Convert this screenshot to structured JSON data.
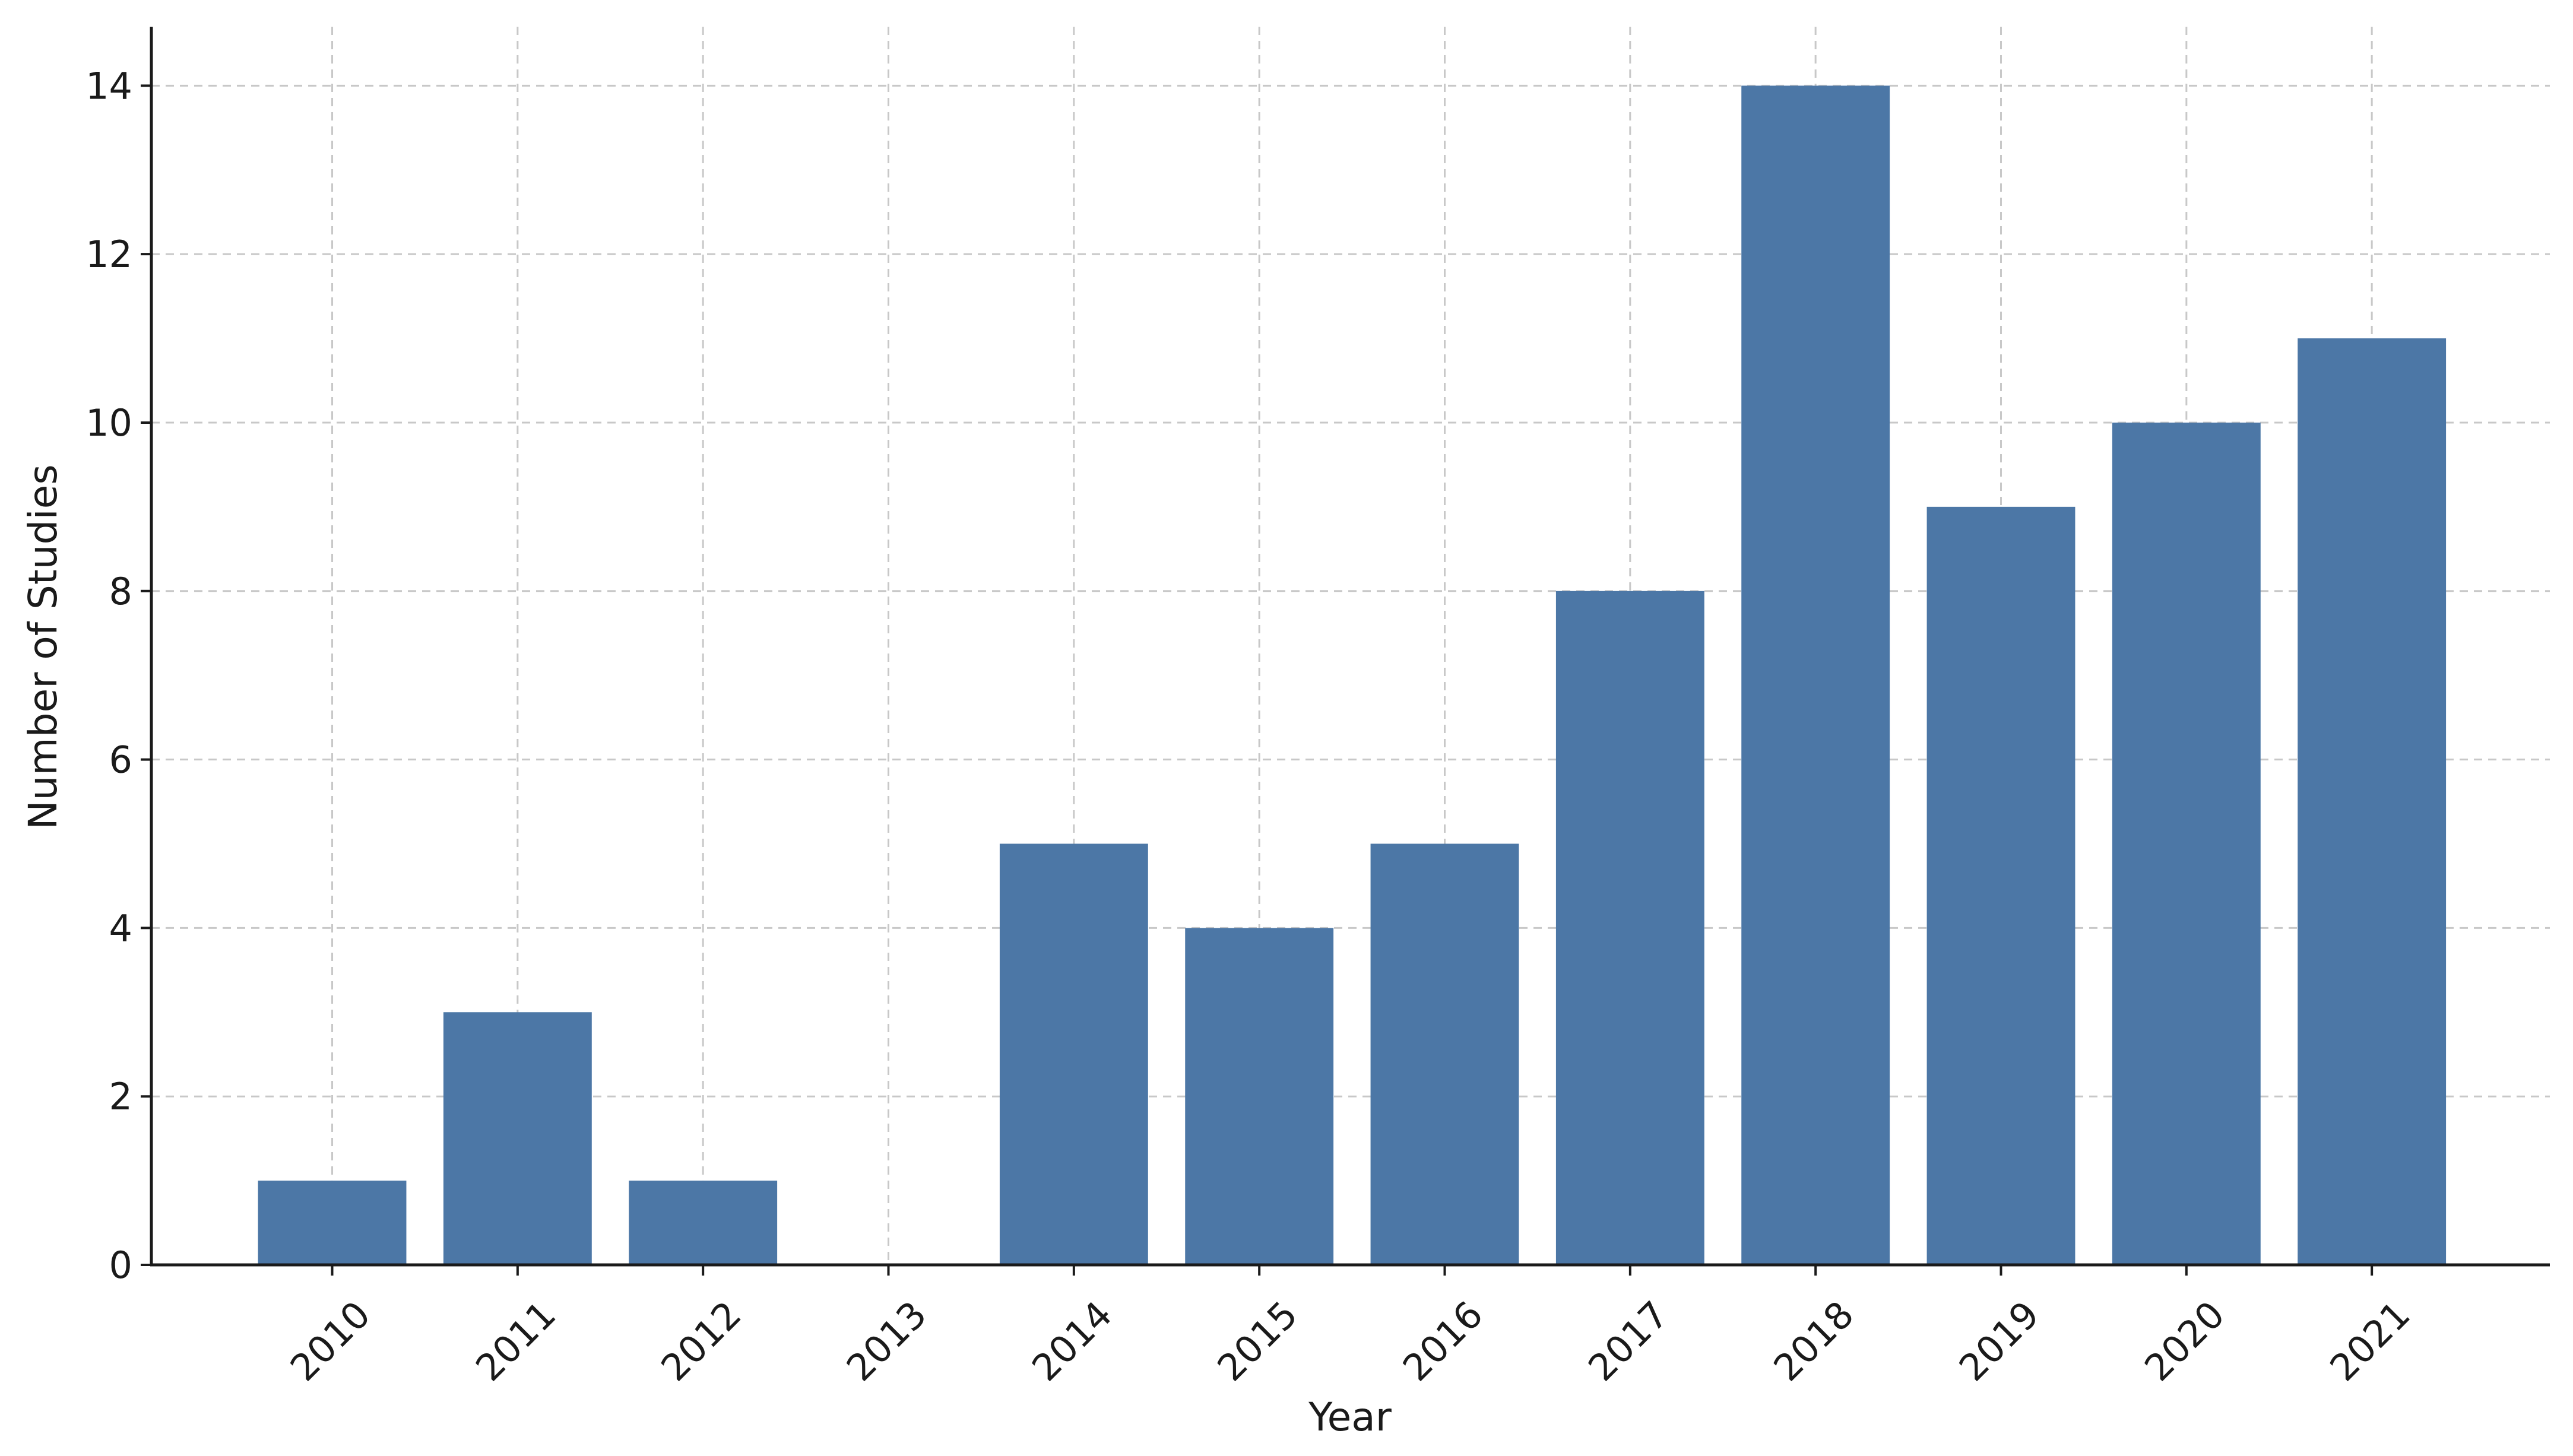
{
  "chart_data": {
    "type": "bar",
    "title": "",
    "xlabel": "Year",
    "ylabel": "Number of Studies",
    "categories": [
      "2010",
      "2011",
      "2012",
      "2013",
      "2014",
      "2015",
      "2016",
      "2017",
      "2018",
      "2019",
      "2020",
      "2021"
    ],
    "values": [
      1,
      3,
      1,
      0,
      5,
      4,
      5,
      8,
      14,
      9,
      10,
      11
    ],
    "ylim": [
      0,
      14.7
    ],
    "yticks": [
      0,
      2,
      4,
      6,
      8,
      10,
      12,
      14
    ],
    "ytick_labels": [
      "0",
      "2",
      "4",
      "6",
      "8",
      "10",
      "12",
      "14"
    ],
    "grid": true,
    "bar_color": "#4c77a6",
    "legend": "none"
  }
}
